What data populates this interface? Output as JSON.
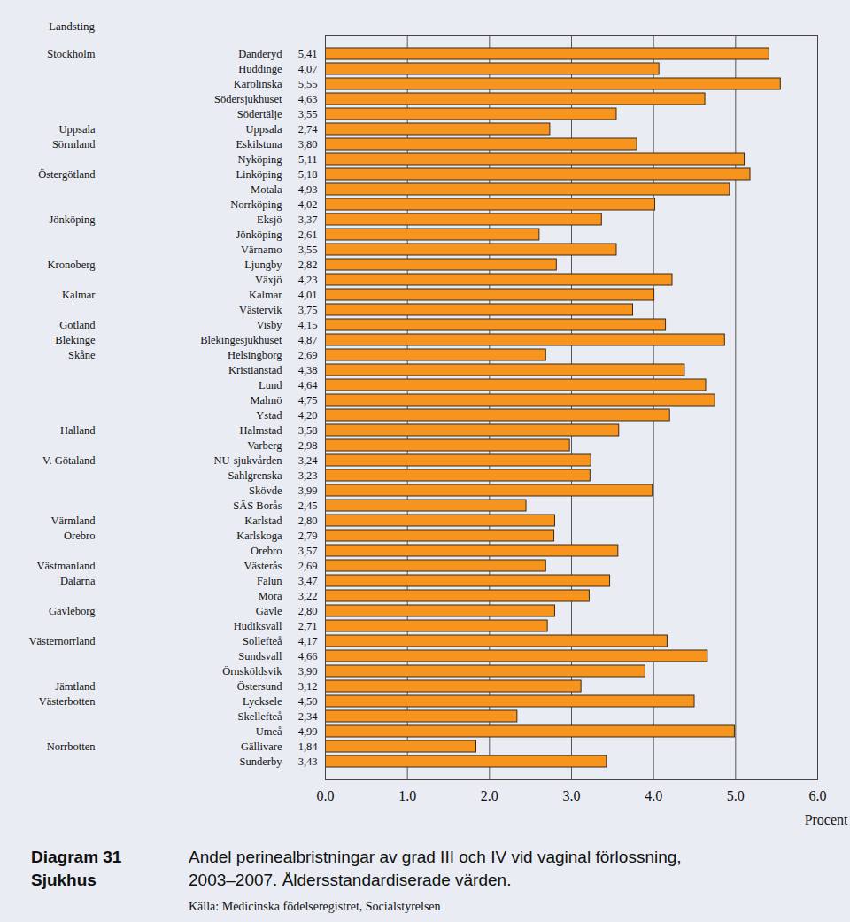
{
  "chart_data": {
    "type": "bar",
    "orientation": "horizontal",
    "title": "Andel perinealbristningar av grad III och IV vid vaginal förlossning, 2003–2007. Åldersstandardiserade värden.",
    "figure_number": "Diagram 31",
    "category_label": "Sjukhus",
    "group_header": "Landsting",
    "source": "Källa: Medicinska födelseregistret, Socialstyrelsen",
    "x_label": "Procent",
    "categories": [
      "Danderyd",
      "Huddinge",
      "Karolinska",
      "Södersjukhuset",
      "Södertälje",
      "Uppsala",
      "Eskilstuna",
      "Nyköping",
      "Linköping",
      "Motala",
      "Norrköping",
      "Eksjö",
      "Jönköping",
      "Värnamo",
      "Ljungby",
      "Växjö",
      "Kalmar",
      "Västervik",
      "Visby",
      "Blekingesjukhuset",
      "Helsingborg",
      "Kristianstad",
      "Lund",
      "Malmö",
      "Ystad",
      "Halmstad",
      "Varberg",
      "NU-sjukvården",
      "Sahlgrenska",
      "Skövde",
      "SÄS Borås",
      "Karlstad",
      "Karlskoga",
      "Örebro",
      "Västerås",
      "Falun",
      "Mora",
      "Gävle",
      "Hudiksvall",
      "Sollefteå",
      "Sundsvall",
      "Örnsköldsvik",
      "Östersund",
      "Lycksele",
      "Skellefteå",
      "Umeå",
      "Gällivare",
      "Sunderby"
    ],
    "groups": [
      "Stockholm",
      null,
      null,
      null,
      null,
      "Uppsala",
      "Sörmland",
      null,
      "Östergötland",
      null,
      null,
      "Jönköping",
      null,
      null,
      "Kronoberg",
      null,
      "Kalmar",
      null,
      "Gotland",
      "Blekinge",
      "Skåne",
      null,
      null,
      null,
      null,
      "Halland",
      null,
      "V. Götaland",
      null,
      null,
      null,
      "Värmland",
      "Örebro",
      null,
      "Västmanland",
      "Dalarna",
      null,
      "Gävleborg",
      null,
      "Västernorrland",
      null,
      null,
      "Jämtland",
      "Västerbotten",
      null,
      null,
      "Norrbotten",
      null
    ],
    "values": [
      5.41,
      4.07,
      5.55,
      4.63,
      3.55,
      2.74,
      3.8,
      5.11,
      5.18,
      4.93,
      4.02,
      3.37,
      2.61,
      3.55,
      2.82,
      4.23,
      4.01,
      3.75,
      4.15,
      4.87,
      2.69,
      4.38,
      4.64,
      4.75,
      4.2,
      3.58,
      2.98,
      3.24,
      3.23,
      3.99,
      2.45,
      2.8,
      2.79,
      3.57,
      2.69,
      3.47,
      3.22,
      2.8,
      2.71,
      4.17,
      4.66,
      3.9,
      3.12,
      4.5,
      2.34,
      4.99,
      1.84,
      3.43
    ],
    "value_labels": [
      "5,41",
      "4,07",
      "5,55",
      "4,63",
      "3,55",
      "2,74",
      "3,80",
      "5,11",
      "5,18",
      "4,93",
      "4,02",
      "3,37",
      "2,61",
      "3,55",
      "2,82",
      "4,23",
      "4,01",
      "3,75",
      "4,15",
      "4,87",
      "2,69",
      "4,38",
      "4,64",
      "4,75",
      "4,20",
      "3,58",
      "2,98",
      "3,24",
      "3,23",
      "3,99",
      "2,45",
      "2,80",
      "2,79",
      "3,57",
      "2,69",
      "3,47",
      "3,22",
      "2,80",
      "2,71",
      "4,17",
      "4,66",
      "3,90",
      "3,12",
      "4,50",
      "2,34",
      "4,99",
      "1,84",
      "3,43"
    ],
    "data_labels": true,
    "color": "#f7941d",
    "xlim": [
      0,
      6
    ],
    "xticks": [
      0,
      1,
      2,
      3,
      4,
      5,
      6
    ],
    "grid": true
  }
}
